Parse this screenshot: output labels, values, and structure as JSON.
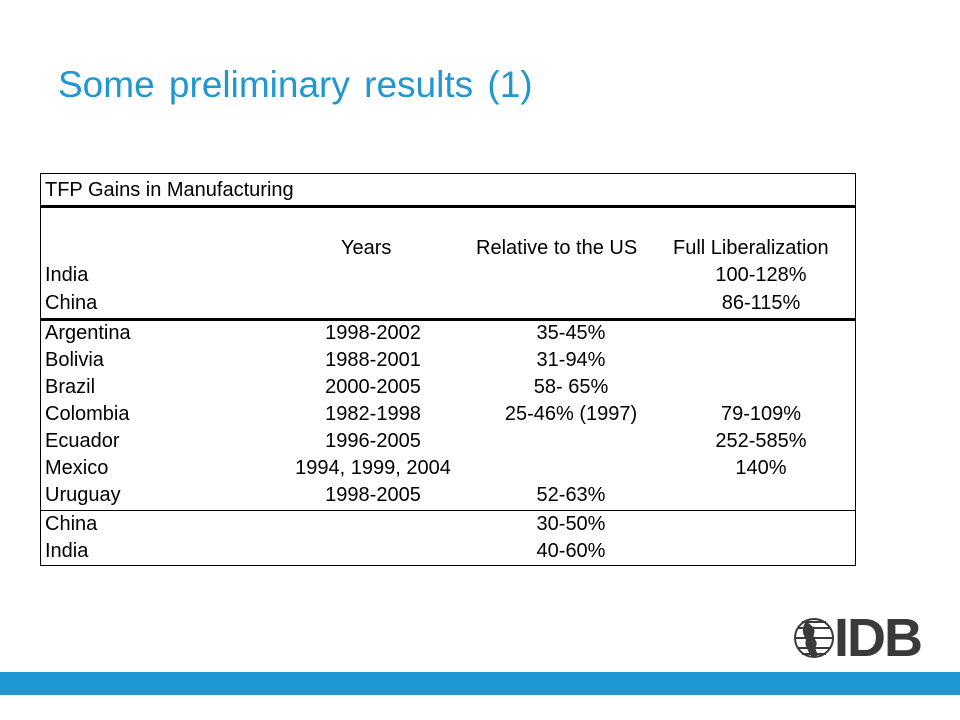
{
  "slide": {
    "title": "Some preliminary results (1)"
  },
  "table": {
    "title": "TFP Gains in Manufacturing",
    "headers": {
      "years": "Years",
      "relative": "Relative to the US",
      "full": "Full Liberalization"
    },
    "group1": [
      {
        "name": "India",
        "years": "",
        "relative": "",
        "full": "100-128%"
      },
      {
        "name": "China",
        "years": "",
        "relative": "",
        "full": "86-115%"
      }
    ],
    "group2": [
      {
        "name": "Argentina",
        "years": "1998-2002",
        "relative": "35-45%",
        "full": ""
      },
      {
        "name": "Bolivia",
        "years": "1988-2001",
        "relative": "31-94%",
        "full": ""
      },
      {
        "name": "Brazil",
        "years": "2000-2005",
        "relative": "58- 65%",
        "full": ""
      },
      {
        "name": "Colombia",
        "years": "1982-1998",
        "relative": "25-46% (1997)",
        "full": "79-109%"
      },
      {
        "name": "Ecuador",
        "years": "1996-2005",
        "relative": "",
        "full": "252-585%"
      },
      {
        "name": "Mexico",
        "years": "1994, 1999, 2004",
        "relative": "",
        "full": "140%"
      },
      {
        "name": "Uruguay",
        "years": "1998-2005",
        "relative": "52-63%",
        "full": ""
      }
    ],
    "group3": [
      {
        "name": "China",
        "years": "",
        "relative": "30-50%",
        "full": ""
      },
      {
        "name": "India",
        "years": "",
        "relative": "40-60%",
        "full": ""
      }
    ]
  },
  "logo": {
    "text": "IDB",
    "icon": "globe-icon"
  },
  "colors": {
    "accent": "#1f97d1",
    "logo_gray": "#3a3a3a"
  }
}
